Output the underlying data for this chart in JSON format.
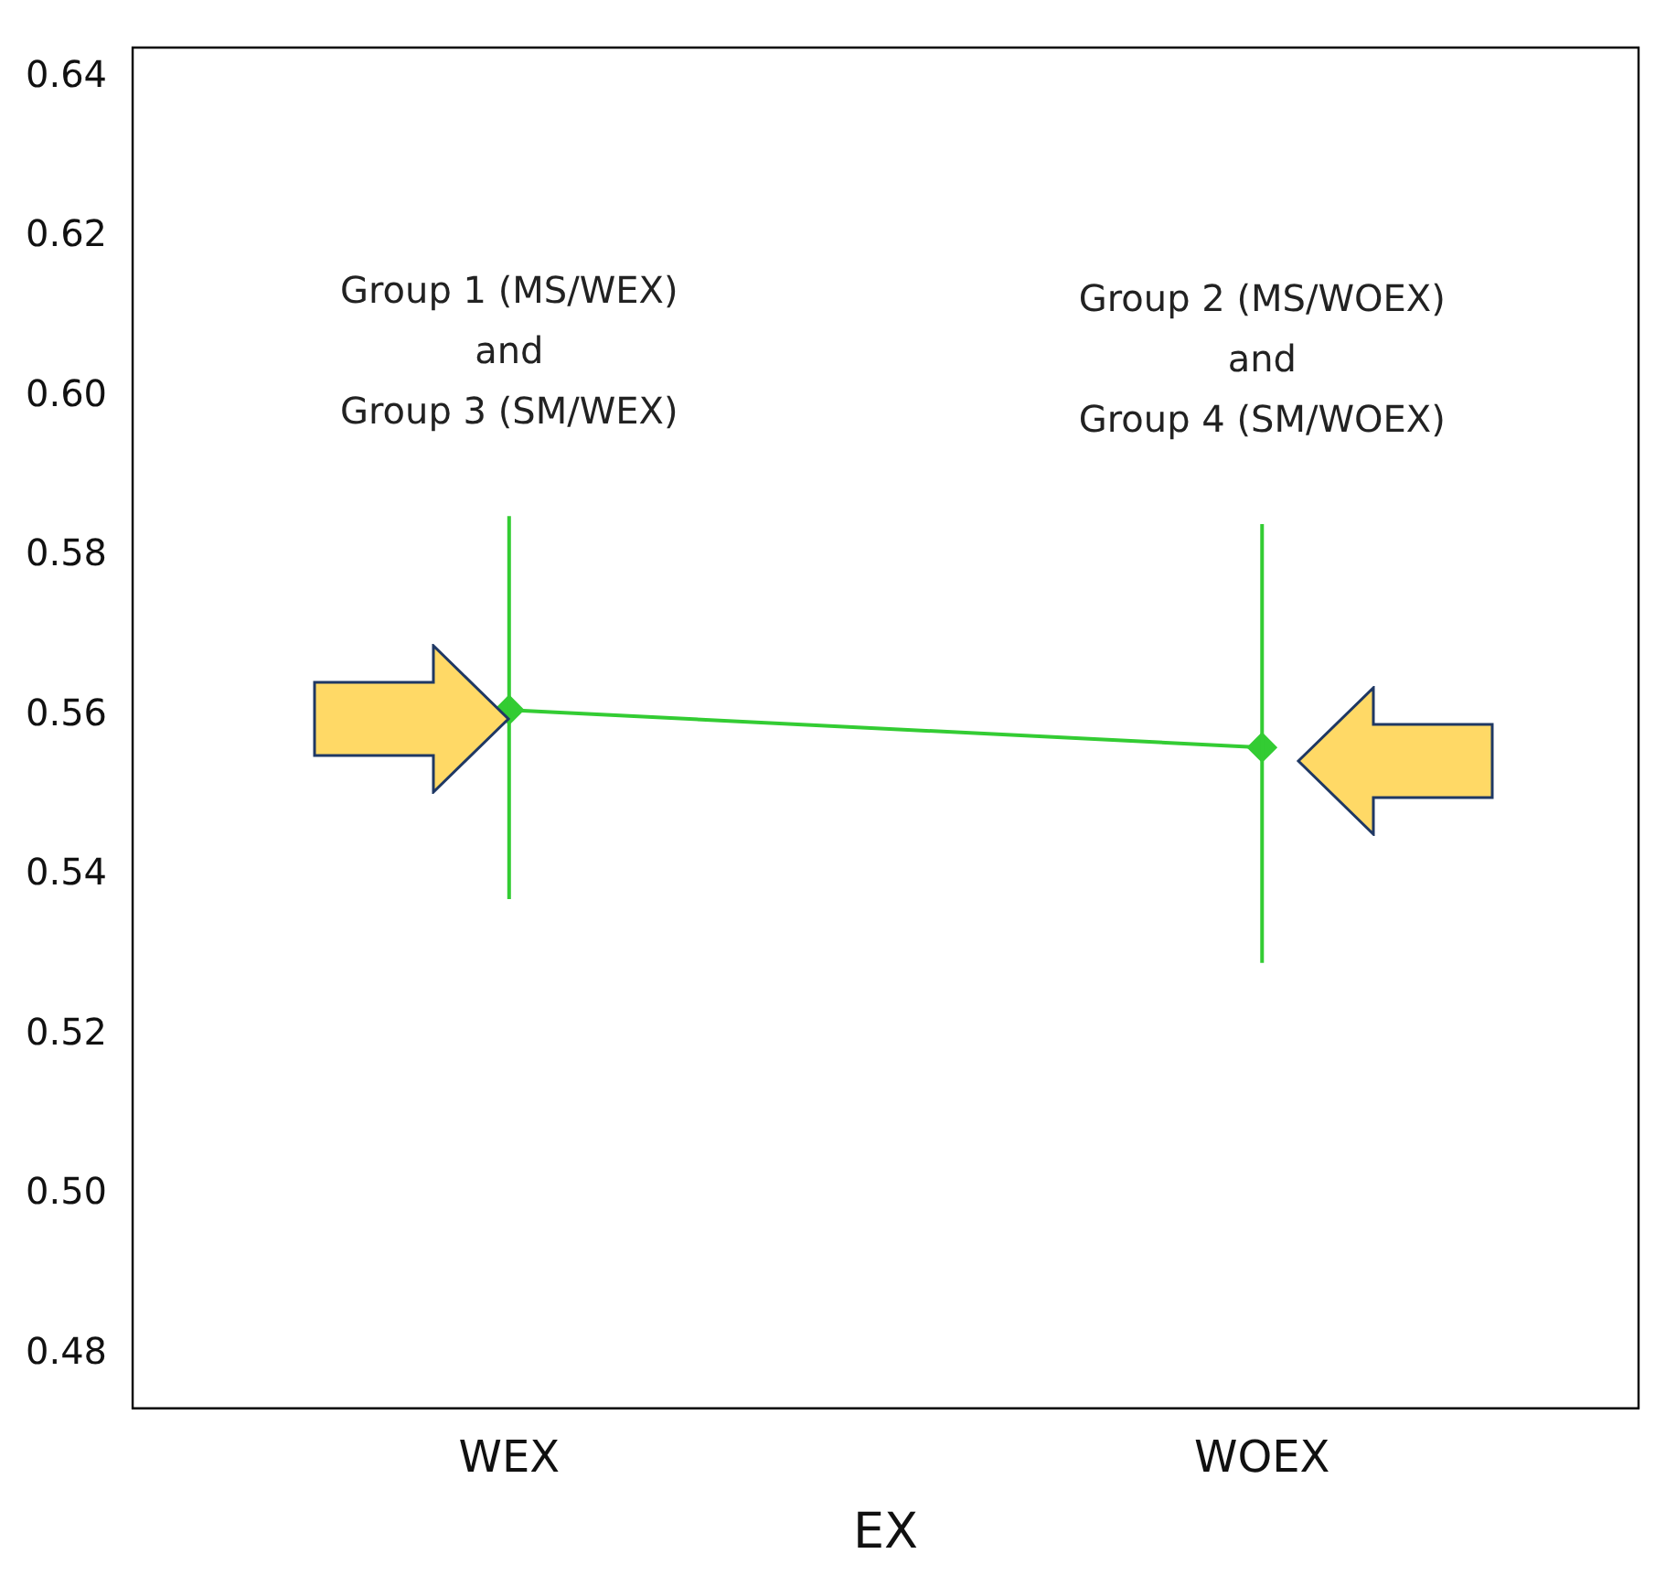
{
  "chart_data": {
    "type": "line",
    "xlabel": "EX",
    "categories": [
      "WEX",
      "WOEX"
    ],
    "series": [
      {
        "color": "#33cc33",
        "values": [
          0.5607,
          0.556
        ],
        "errors": [
          [
            0.537,
            0.585
          ],
          [
            0.529,
            0.584
          ]
        ]
      }
    ],
    "ylim": [
      0.4732,
      0.6437
    ],
    "yticks": [
      0.48,
      {
        "value": 0.5,
        "label": "0.50"
      },
      0.52,
      0.54,
      0.56,
      0.58,
      {
        "value": 0.6,
        "label": "0.60"
      },
      0.62,
      0.64
    ],
    "marker": "diamond",
    "grid": false,
    "legend": false,
    "annotations": [
      "Group 1 (MS/WEX)\nand\nGroup 3 (SM/WEX)",
      "Group 2 (MS/WOEX)\nand\nGroup 4 (SM/WOEX)"
    ]
  }
}
